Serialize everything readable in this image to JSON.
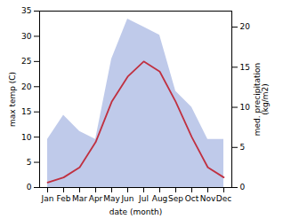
{
  "chart_data": {
    "type": "line",
    "xlabel": "date (month)",
    "ylabel": "max temp (C)",
    "y2label": "med. precipitation\n(kg/m2)",
    "categories": [
      "Jan",
      "Feb",
      "Mar",
      "Apr",
      "May",
      "Jun",
      "Jul",
      "Aug",
      "Sep",
      "Oct",
      "Nov",
      "Dec"
    ],
    "series": [
      {
        "type": "area",
        "axis": "y2",
        "color": "#b8c4e8",
        "values": [
          6,
          9,
          7,
          6,
          16,
          21,
          20,
          19,
          12,
          10,
          6,
          6
        ]
      },
      {
        "type": "line",
        "color": "#c03040",
        "values": [
          1,
          2,
          4,
          9,
          17,
          22,
          25,
          23,
          17,
          10,
          4,
          2
        ]
      }
    ],
    "ylim": [
      0,
      35
    ],
    "yticks": [
      0,
      5,
      10,
      15,
      20,
      25,
      30,
      35
    ],
    "y2lim": [
      0,
      22
    ],
    "y2ticks": [
      0,
      5,
      10,
      15,
      20
    ]
  }
}
